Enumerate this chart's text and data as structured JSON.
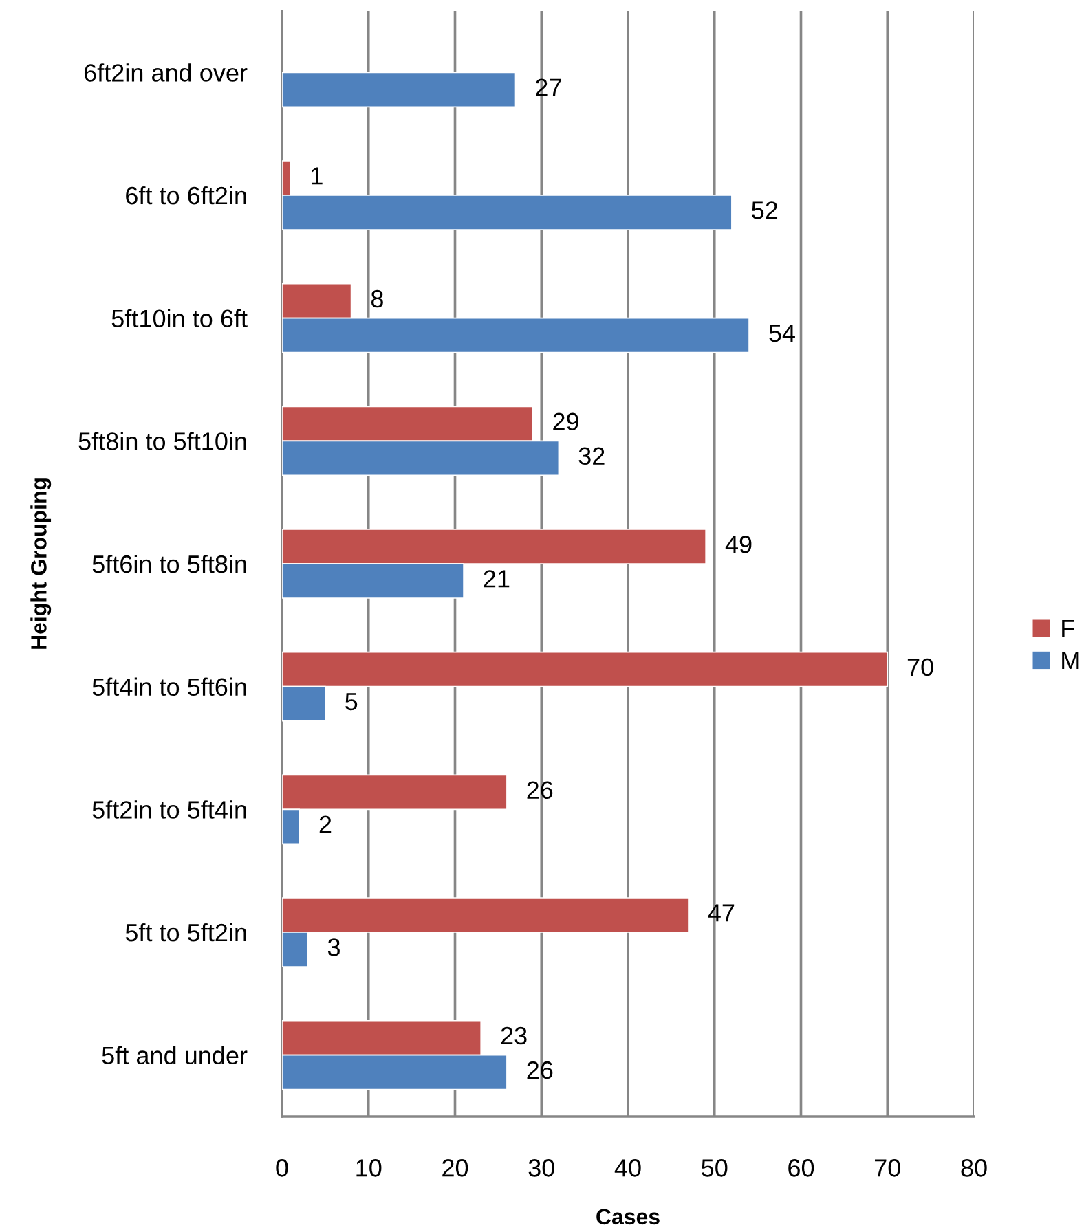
{
  "chart_data": {
    "type": "bar",
    "orientation": "horizontal",
    "xlabel": "Cases",
    "ylabel": "Height Grouping",
    "categories": [
      "6ft2in and over",
      "6ft to 6ft2in",
      "5ft10in to 6ft",
      "5ft8in to 5ft10in",
      "5ft6in to 5ft8in",
      "5ft4in to 5ft6in",
      "5ft2in to 5ft4in",
      "5ft to 5ft2in",
      "5ft and under"
    ],
    "series": [
      {
        "name": "F",
        "color": "#c0504d",
        "values": [
          null,
          1,
          8,
          29,
          49,
          70,
          26,
          47,
          23
        ]
      },
      {
        "name": "M",
        "color": "#4f81bd",
        "values": [
          27,
          52,
          54,
          32,
          21,
          5,
          2,
          3,
          26
        ]
      }
    ],
    "xlim": [
      0,
      80
    ],
    "xticks": [
      0,
      10,
      20,
      30,
      40,
      50,
      60,
      70,
      80
    ],
    "grid": "x",
    "legend": "right",
    "data_labels": true
  }
}
